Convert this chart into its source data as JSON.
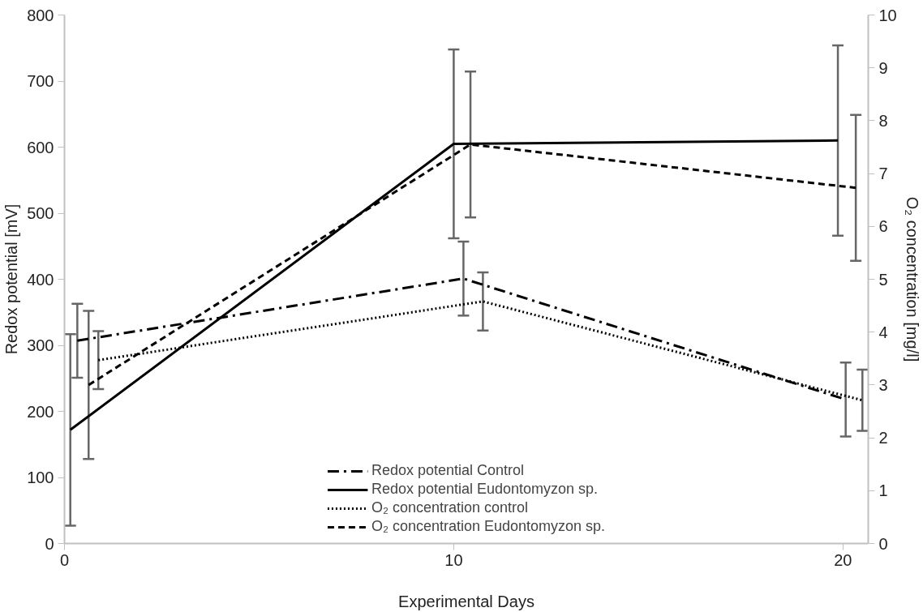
{
  "chart_data": {
    "type": "line",
    "xlabel": "Experimental Days",
    "ylabel": "Redox potential [mV]",
    "y2label": "O₂ concentration [mg/l]",
    "xlim": [
      0,
      20.65
    ],
    "xticks": [
      0,
      10,
      20
    ],
    "ylim": [
      0,
      800
    ],
    "yticks": [
      0,
      100,
      200,
      300,
      400,
      500,
      600,
      700,
      800
    ],
    "y2lim": [
      0,
      10
    ],
    "y2ticks": [
      0,
      1,
      2,
      3,
      4,
      5,
      6,
      7,
      8,
      9,
      10
    ],
    "grid": false,
    "legend": "bottom",
    "marker": "none",
    "series": [
      {
        "name": "Redox potential Control",
        "color": "#000000",
        "line_style": "dashdot",
        "x": [
          0.33,
          10.25,
          20.07
        ],
        "values": [
          307,
          401,
          218
        ],
        "errors": [
          56,
          56,
          56
        ]
      },
      {
        "name": "Redox potential Eudontomyzon sp.",
        "color": "#000000",
        "line_style": "solid",
        "x": [
          0.15,
          10.0,
          19.87
        ],
        "values": [
          172,
          605,
          610
        ],
        "errors": [
          145,
          143,
          144
        ]
      },
      {
        "name": "O₂ concentration control",
        "color": "#000000",
        "line_style": "dotted",
        "axis": "y2",
        "x": [
          0.87,
          10.75,
          20.5
        ],
        "values": [
          3.47,
          4.58,
          2.71
        ],
        "errors": [
          0.55,
          0.55,
          0.58
        ]
      },
      {
        "name": "O₂ concentration Eudontomyzon sp.",
        "color": "#000000",
        "line_style": "dashed",
        "axis": "y2",
        "x": [
          0.62,
          10.43,
          20.33
        ],
        "values": [
          3.0,
          7.55,
          6.73
        ],
        "errors": [
          1.4,
          1.38,
          1.38
        ]
      }
    ]
  }
}
